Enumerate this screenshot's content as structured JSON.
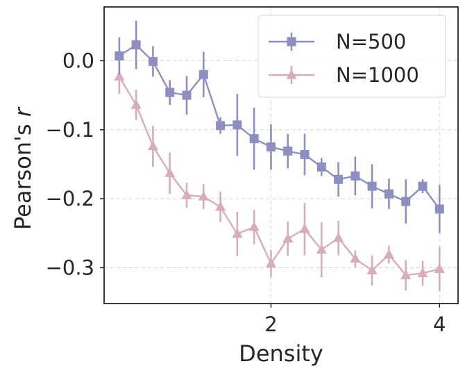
{
  "chart_data": {
    "type": "line",
    "title": "",
    "xlabel": "Density",
    "ylabel_prefix": "Pearson's ",
    "ylabel_var": "r",
    "xlim": [
      0.02,
      4.22
    ],
    "ylim": [
      -0.352,
      0.078
    ],
    "xticks": [
      2,
      4
    ],
    "xtick_labels": [
      "2",
      "4"
    ],
    "yticks": [
      0.0,
      -0.1,
      -0.2,
      -0.3
    ],
    "ytick_labels": [
      "0.0",
      "−0.1",
      "−0.2",
      "−0.3"
    ],
    "grid": true,
    "legend_position": "top-right",
    "series": [
      {
        "name": "N=500",
        "color": "#8c8fbf",
        "marker": "square",
        "x": [
          0.2,
          0.4,
          0.6,
          0.8,
          1.0,
          1.2,
          1.4,
          1.6,
          1.8,
          2.0,
          2.2,
          2.4,
          2.6,
          2.8,
          3.0,
          3.2,
          3.4,
          3.6,
          3.8,
          4.0
        ],
        "y": [
          0.007,
          0.023,
          -0.001,
          -0.046,
          -0.05,
          -0.02,
          -0.094,
          -0.093,
          -0.113,
          -0.125,
          -0.131,
          -0.136,
          -0.154,
          -0.172,
          -0.167,
          -0.182,
          -0.193,
          -0.204,
          -0.182,
          -0.215
        ],
        "err": [
          0.027,
          0.035,
          0.022,
          0.018,
          0.028,
          0.033,
          0.012,
          0.045,
          0.045,
          0.033,
          0.025,
          0.03,
          0.013,
          0.025,
          0.028,
          0.032,
          0.022,
          0.032,
          0.01,
          0.035
        ]
      },
      {
        "name": "N=1000",
        "color": "#d8adbb",
        "marker": "triangle",
        "x": [
          0.2,
          0.4,
          0.6,
          0.8,
          1.0,
          1.2,
          1.4,
          1.6,
          1.8,
          2.0,
          2.2,
          2.4,
          2.6,
          2.8,
          3.0,
          3.2,
          3.4,
          3.6,
          3.8,
          4.0
        ],
        "y": [
          -0.023,
          -0.064,
          -0.124,
          -0.163,
          -0.195,
          -0.197,
          -0.212,
          -0.251,
          -0.241,
          -0.294,
          -0.258,
          -0.244,
          -0.274,
          -0.257,
          -0.287,
          -0.304,
          -0.281,
          -0.311,
          -0.308,
          -0.302
        ],
        "err": [
          0.025,
          0.022,
          0.03,
          0.03,
          0.018,
          0.018,
          0.022,
          0.032,
          0.025,
          0.02,
          0.025,
          0.038,
          0.04,
          0.025,
          0.012,
          0.022,
          0.013,
          0.022,
          0.018,
          0.032
        ]
      }
    ]
  }
}
